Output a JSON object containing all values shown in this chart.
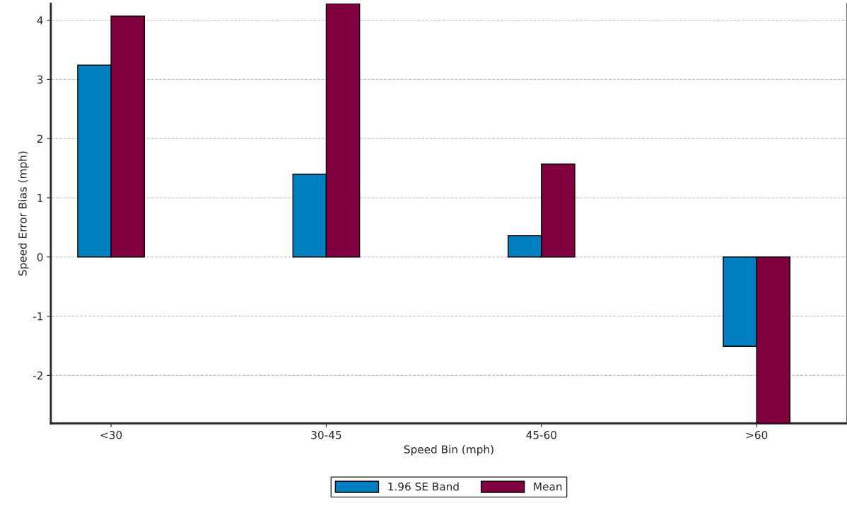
{
  "chart_data": {
    "type": "bar",
    "xlabel": "Speed Bin (mph)",
    "ylabel": "Speed Error Bias (mph)",
    "categories": [
      "<30",
      "30-45",
      "45-60",
      ">60"
    ],
    "series": [
      {
        "name": "1.96 SE Band",
        "color": "#0080c0",
        "values": [
          3.24,
          1.4,
          0.36,
          -1.51
        ]
      },
      {
        "name": "Mean",
        "color": "#800040",
        "values": [
          4.07,
          4.28,
          1.57,
          -2.81
        ]
      }
    ],
    "ylim": [
      -2.81,
      4.28
    ],
    "yticks": [
      -2,
      -1,
      0,
      1,
      2,
      3,
      4
    ],
    "grid": "y",
    "legend": "bottom"
  }
}
